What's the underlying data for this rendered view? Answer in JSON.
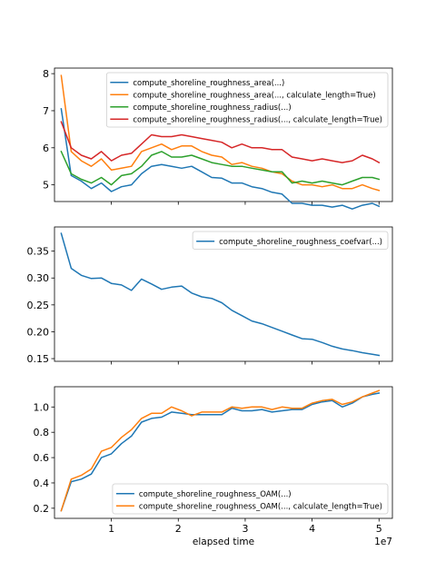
{
  "chart_data": [
    {
      "type": "line",
      "ylim": [
        4.55,
        8.15
      ],
      "xlim": [
        1500000,
        52000000
      ],
      "yticks": [
        "5",
        "6",
        "7",
        "8"
      ],
      "ytick_values": [
        5,
        6,
        7,
        8
      ],
      "legend_position": "upper-right",
      "series": [
        {
          "name": "compute_shoreline_roughness_area(...)",
          "color": "#1f77b4",
          "x": [
            2500000,
            4000000,
            5500000,
            7000000,
            8500000,
            10000000,
            11500000,
            13000000,
            14500000,
            16000000,
            17500000,
            19000000,
            20500000,
            22000000,
            23500000,
            25000000,
            26500000,
            28000000,
            29500000,
            31000000,
            32500000,
            34000000,
            35500000,
            37000000,
            38500000,
            40000000,
            41500000,
            43000000,
            44500000,
            46000000,
            47500000,
            49000000,
            50000000
          ],
          "y": [
            7.05,
            5.25,
            5.1,
            4.9,
            5.05,
            4.82,
            4.95,
            5.0,
            5.3,
            5.5,
            5.55,
            5.5,
            5.45,
            5.5,
            5.35,
            5.2,
            5.18,
            5.05,
            5.05,
            4.95,
            4.9,
            4.8,
            4.75,
            4.5,
            4.5,
            4.45,
            4.45,
            4.4,
            4.45,
            4.35,
            4.45,
            4.5,
            4.42
          ]
        },
        {
          "name": "compute_shoreline_roughness_area(..., calculate_length=True)",
          "color": "#ff7f0e",
          "x": [
            2500000,
            4000000,
            5500000,
            7000000,
            8500000,
            10000000,
            11500000,
            13000000,
            14500000,
            16000000,
            17500000,
            19000000,
            20500000,
            22000000,
            23500000,
            25000000,
            26500000,
            28000000,
            29500000,
            31000000,
            32500000,
            34000000,
            35500000,
            37000000,
            38500000,
            40000000,
            41500000,
            43000000,
            44500000,
            46000000,
            47500000,
            49000000,
            50000000
          ],
          "y": [
            7.95,
            5.9,
            5.65,
            5.5,
            5.7,
            5.4,
            5.45,
            5.5,
            5.9,
            6.0,
            6.1,
            5.95,
            6.05,
            6.05,
            5.9,
            5.8,
            5.75,
            5.55,
            5.6,
            5.5,
            5.45,
            5.35,
            5.3,
            5.1,
            5.0,
            5.0,
            4.95,
            5.0,
            4.9,
            4.9,
            5.0,
            4.9,
            4.85
          ]
        },
        {
          "name": "compute_shoreline_roughness_radius(...)",
          "color": "#2ca02c",
          "x": [
            2500000,
            4000000,
            5500000,
            7000000,
            8500000,
            10000000,
            11500000,
            13000000,
            14500000,
            16000000,
            17500000,
            19000000,
            20500000,
            22000000,
            23500000,
            25000000,
            26500000,
            28000000,
            29500000,
            31000000,
            32500000,
            34000000,
            35500000,
            37000000,
            38500000,
            40000000,
            41500000,
            43000000,
            44500000,
            46000000,
            47500000,
            49000000,
            50000000
          ],
          "y": [
            5.9,
            5.3,
            5.15,
            5.05,
            5.2,
            5.0,
            5.25,
            5.3,
            5.5,
            5.8,
            5.9,
            5.75,
            5.75,
            5.8,
            5.7,
            5.6,
            5.55,
            5.5,
            5.5,
            5.45,
            5.4,
            5.35,
            5.35,
            5.05,
            5.1,
            5.05,
            5.1,
            5.05,
            5.0,
            5.1,
            5.2,
            5.2,
            5.15
          ]
        },
        {
          "name": "compute_shoreline_roughness_radius(..., calculate_length=True)",
          "color": "#d62728",
          "x": [
            2500000,
            4000000,
            5500000,
            7000000,
            8500000,
            10000000,
            11500000,
            13000000,
            14500000,
            16000000,
            17500000,
            19000000,
            20500000,
            22000000,
            23500000,
            25000000,
            26500000,
            28000000,
            29500000,
            31000000,
            32500000,
            34000000,
            35500000,
            37000000,
            38500000,
            40000000,
            41500000,
            43000000,
            44500000,
            46000000,
            47500000,
            49000000,
            50000000
          ],
          "y": [
            6.7,
            6.0,
            5.8,
            5.7,
            5.9,
            5.65,
            5.8,
            5.85,
            6.1,
            6.35,
            6.3,
            6.3,
            6.35,
            6.3,
            6.25,
            6.2,
            6.15,
            6.0,
            6.1,
            6.0,
            6.0,
            5.95,
            5.95,
            5.75,
            5.7,
            5.65,
            5.7,
            5.65,
            5.6,
            5.65,
            5.8,
            5.7,
            5.6
          ]
        }
      ]
    },
    {
      "type": "line",
      "ylim": [
        0.145,
        0.395
      ],
      "xlim": [
        1500000,
        52000000
      ],
      "yticks": [
        "0.15",
        "0.20",
        "0.25",
        "0.30",
        "0.35"
      ],
      "ytick_values": [
        0.15,
        0.2,
        0.25,
        0.3,
        0.35
      ],
      "legend_position": "upper-right",
      "series": [
        {
          "name": "compute_shoreline_roughness_coefvar(...)",
          "color": "#1f77b4",
          "x": [
            2500000,
            4000000,
            5500000,
            7000000,
            8500000,
            10000000,
            11500000,
            13000000,
            14500000,
            16000000,
            17500000,
            19000000,
            20500000,
            22000000,
            23500000,
            25000000,
            26500000,
            28000000,
            29500000,
            31000000,
            32500000,
            34000000,
            35500000,
            37000000,
            38500000,
            40000000,
            41500000,
            43000000,
            44500000,
            46000000,
            47500000,
            49000000,
            50000000
          ],
          "y": [
            0.383,
            0.318,
            0.305,
            0.299,
            0.3,
            0.29,
            0.287,
            0.277,
            0.298,
            0.289,
            0.279,
            0.283,
            0.285,
            0.272,
            0.265,
            0.262,
            0.254,
            0.24,
            0.23,
            0.22,
            0.215,
            0.208,
            0.201,
            0.194,
            0.187,
            0.186,
            0.18,
            0.173,
            0.168,
            0.165,
            0.161,
            0.158,
            0.156
          ]
        }
      ]
    },
    {
      "type": "line",
      "ylim": [
        0.12,
        1.16
      ],
      "xlim": [
        1500000,
        52000000
      ],
      "yticks": [
        "0.2",
        "0.4",
        "0.6",
        "0.8",
        "1.0"
      ],
      "ytick_values": [
        0.2,
        0.4,
        0.6,
        0.8,
        1.0
      ],
      "xticks": [
        "1",
        "2",
        "3",
        "4",
        "5"
      ],
      "xtick_values": [
        10000000,
        20000000,
        30000000,
        40000000,
        50000000
      ],
      "xlabel": "elapsed time",
      "x_offset_label": "1e7",
      "legend_position": "lower-right",
      "series": [
        {
          "name": "compute_shoreline_roughness_OAM(...)",
          "color": "#1f77b4",
          "x": [
            2500000,
            4000000,
            5500000,
            7000000,
            8500000,
            10000000,
            11500000,
            13000000,
            14500000,
            16000000,
            17500000,
            19000000,
            20500000,
            22000000,
            23500000,
            25000000,
            26500000,
            28000000,
            29500000,
            31000000,
            32500000,
            34000000,
            35500000,
            37000000,
            38500000,
            40000000,
            41500000,
            43000000,
            44500000,
            46000000,
            47500000,
            49000000,
            50000000
          ],
          "y": [
            0.18,
            0.41,
            0.43,
            0.47,
            0.6,
            0.63,
            0.71,
            0.77,
            0.88,
            0.91,
            0.92,
            0.96,
            0.95,
            0.94,
            0.94,
            0.94,
            0.94,
            0.99,
            0.97,
            0.97,
            0.98,
            0.96,
            0.97,
            0.98,
            0.98,
            1.02,
            1.04,
            1.05,
            1.0,
            1.03,
            1.08,
            1.1,
            1.11
          ]
        },
        {
          "name": "compute_shoreline_roughness_OAM(..., calculate_length=True)",
          "color": "#ff7f0e",
          "x": [
            2500000,
            4000000,
            5500000,
            7000000,
            8500000,
            10000000,
            11500000,
            13000000,
            14500000,
            16000000,
            17500000,
            19000000,
            20500000,
            22000000,
            23500000,
            25000000,
            26500000,
            28000000,
            29500000,
            31000000,
            32500000,
            34000000,
            35500000,
            37000000,
            38500000,
            40000000,
            41500000,
            43000000,
            44500000,
            46000000,
            47500000,
            49000000,
            50000000
          ],
          "y": [
            0.18,
            0.43,
            0.46,
            0.51,
            0.65,
            0.68,
            0.76,
            0.82,
            0.91,
            0.95,
            0.95,
            1.0,
            0.97,
            0.93,
            0.96,
            0.96,
            0.96,
            1.0,
            0.99,
            1.0,
            1.0,
            0.98,
            1.0,
            0.99,
            0.99,
            1.03,
            1.05,
            1.06,
            1.02,
            1.04,
            1.08,
            1.11,
            1.13
          ]
        }
      ]
    }
  ]
}
